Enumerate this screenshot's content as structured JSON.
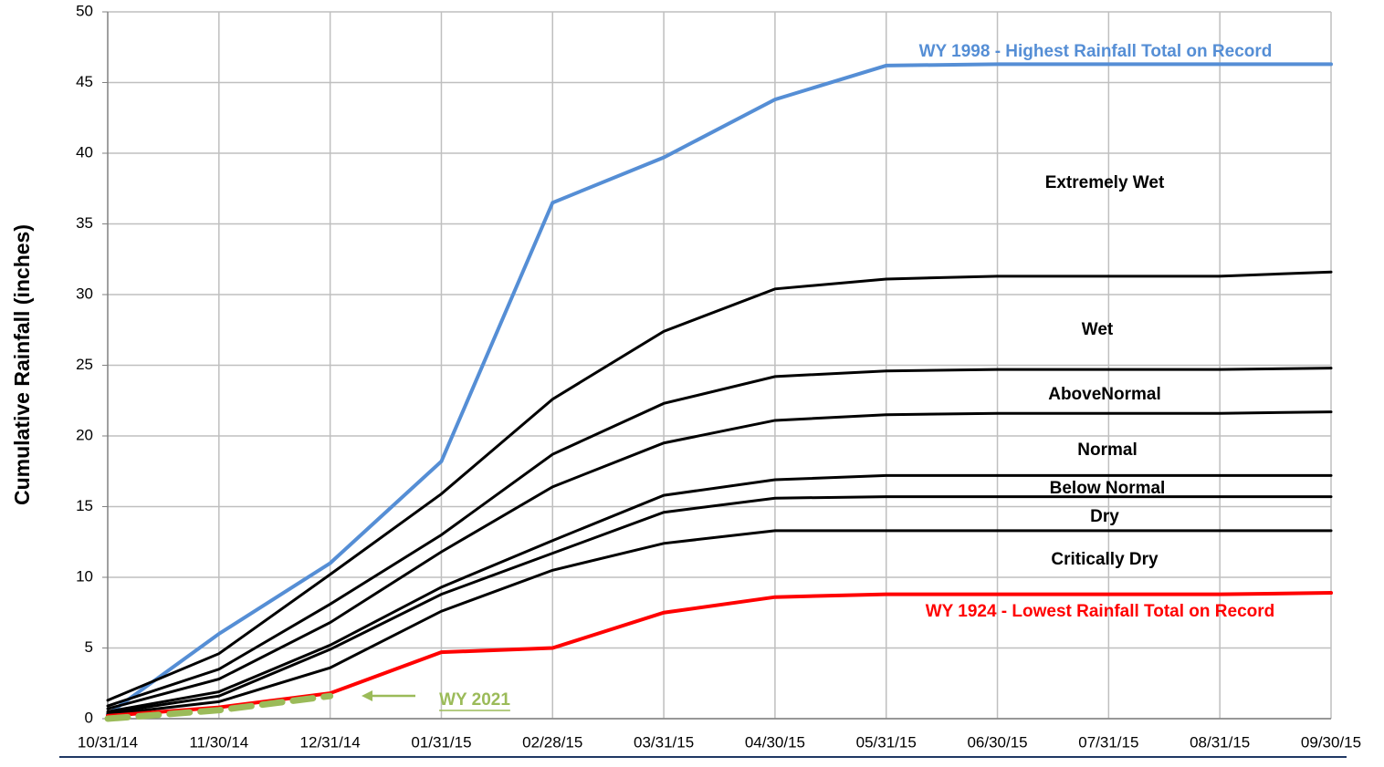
{
  "chart_data": {
    "type": "line",
    "y_label": "Cumulative Rainfall (inches)",
    "categories": [
      "10/31/14",
      "11/30/14",
      "12/31/14",
      "01/31/15",
      "02/28/15",
      "03/31/15",
      "04/30/15",
      "05/31/15",
      "06/30/15",
      "07/31/15",
      "08/31/15",
      "09/30/15"
    ],
    "ylim": [
      0,
      50
    ],
    "yticks": [
      0,
      5,
      10,
      15,
      20,
      25,
      30,
      35,
      40,
      45,
      50
    ],
    "grid": true,
    "series": [
      {
        "name": "WY 1998 - Highest Rainfall Total on Record",
        "color": "#558ed5",
        "values": [
          0.3,
          6,
          11,
          18.2,
          36.5,
          39.7,
          43.8,
          46.2,
          46.3,
          46.3,
          46.3,
          46.3
        ]
      },
      {
        "color": "#000000",
        "values": [
          1.3,
          4.6,
          10.2,
          15.9,
          22.6,
          27.4,
          30.4,
          31.1,
          31.3,
          31.3,
          31.3,
          31.6
        ]
      },
      {
        "color": "#000000",
        "values": [
          0.9,
          3.5,
          8.1,
          13,
          18.7,
          22.3,
          24.2,
          24.6,
          24.7,
          24.7,
          24.7,
          24.8
        ]
      },
      {
        "color": "#000000",
        "values": [
          0.7,
          2.8,
          6.8,
          11.8,
          16.4,
          19.5,
          21.1,
          21.5,
          21.6,
          21.6,
          21.6,
          21.7
        ]
      },
      {
        "color": "#000000",
        "values": [
          0.5,
          1.9,
          5.2,
          9.3,
          12.6,
          15.8,
          16.9,
          17.2,
          17.2,
          17.2,
          17.2,
          17.2
        ]
      },
      {
        "color": "#000000",
        "values": [
          0.4,
          1.6,
          4.9,
          8.8,
          11.7,
          14.6,
          15.6,
          15.7,
          15.7,
          15.7,
          15.7,
          15.7
        ]
      },
      {
        "color": "#000000",
        "values": [
          0.3,
          1.2,
          3.6,
          7.6,
          10.5,
          12.4,
          13.3,
          13.3,
          13.3,
          13.3,
          13.3,
          13.3
        ]
      },
      {
        "name": "WY 1924 - Lowest Rainfall Total on Record",
        "color": "#ff0000",
        "values": [
          0.2,
          0.8,
          1.8,
          4.7,
          5,
          7.5,
          8.6,
          8.8,
          8.8,
          8.8,
          8.8,
          8.9
        ]
      },
      {
        "name": "WY 2021",
        "color": "#9bbb59",
        "line_style": "dashed",
        "values": [
          0,
          0.6,
          1.6,
          null,
          null,
          null,
          null,
          null,
          null,
          null,
          null,
          null
        ]
      }
    ],
    "annotations": [
      "Extremely Wet",
      "Wet",
      "AboveNormal",
      "Normal",
      "Below Normal",
      "Dry",
      "Critically Dry"
    ]
  }
}
